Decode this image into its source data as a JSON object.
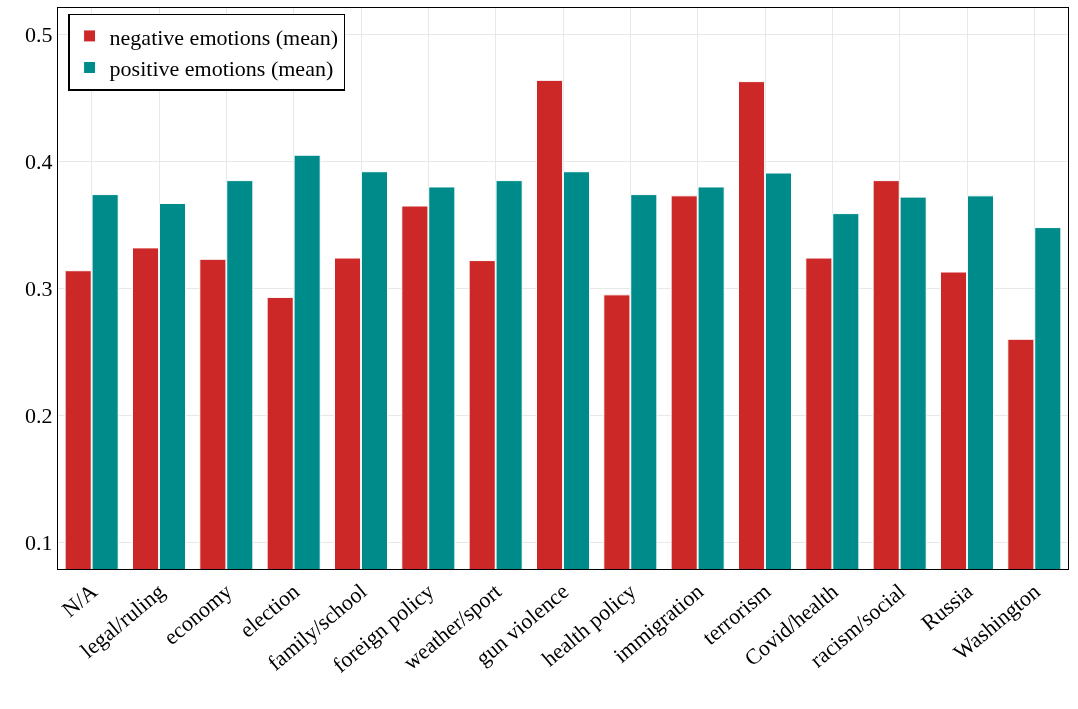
{
  "chart_data": {
    "type": "bar",
    "categories": [
      "N/A",
      "legal/ruling",
      "economy",
      "election",
      "family/school",
      "foreign policy",
      "weather/sport",
      "gun violence",
      "health policy",
      "immigration",
      "terrorism",
      "Covid/health",
      "racism/social",
      "Russia",
      "Washington"
    ],
    "series": [
      {
        "name": "negative emotions (mean)",
        "color": "#cc2828",
        "values": [
          0.314,
          0.332,
          0.323,
          0.293,
          0.324,
          0.365,
          0.322,
          0.464,
          0.295,
          0.373,
          0.463,
          0.324,
          0.385,
          0.313,
          0.26
        ]
      },
      {
        "name": "positive emotions (mean)",
        "color": "#008b8b",
        "values": [
          0.374,
          0.367,
          0.385,
          0.405,
          0.392,
          0.38,
          0.385,
          0.392,
          0.374,
          0.38,
          0.391,
          0.359,
          0.372,
          0.373,
          0.348
        ]
      }
    ],
    "ylim": [
      0.079,
      0.521
    ],
    "yticks": [
      0.1,
      0.2,
      0.3,
      0.4,
      0.5
    ],
    "grid": true,
    "legend": "top left"
  }
}
